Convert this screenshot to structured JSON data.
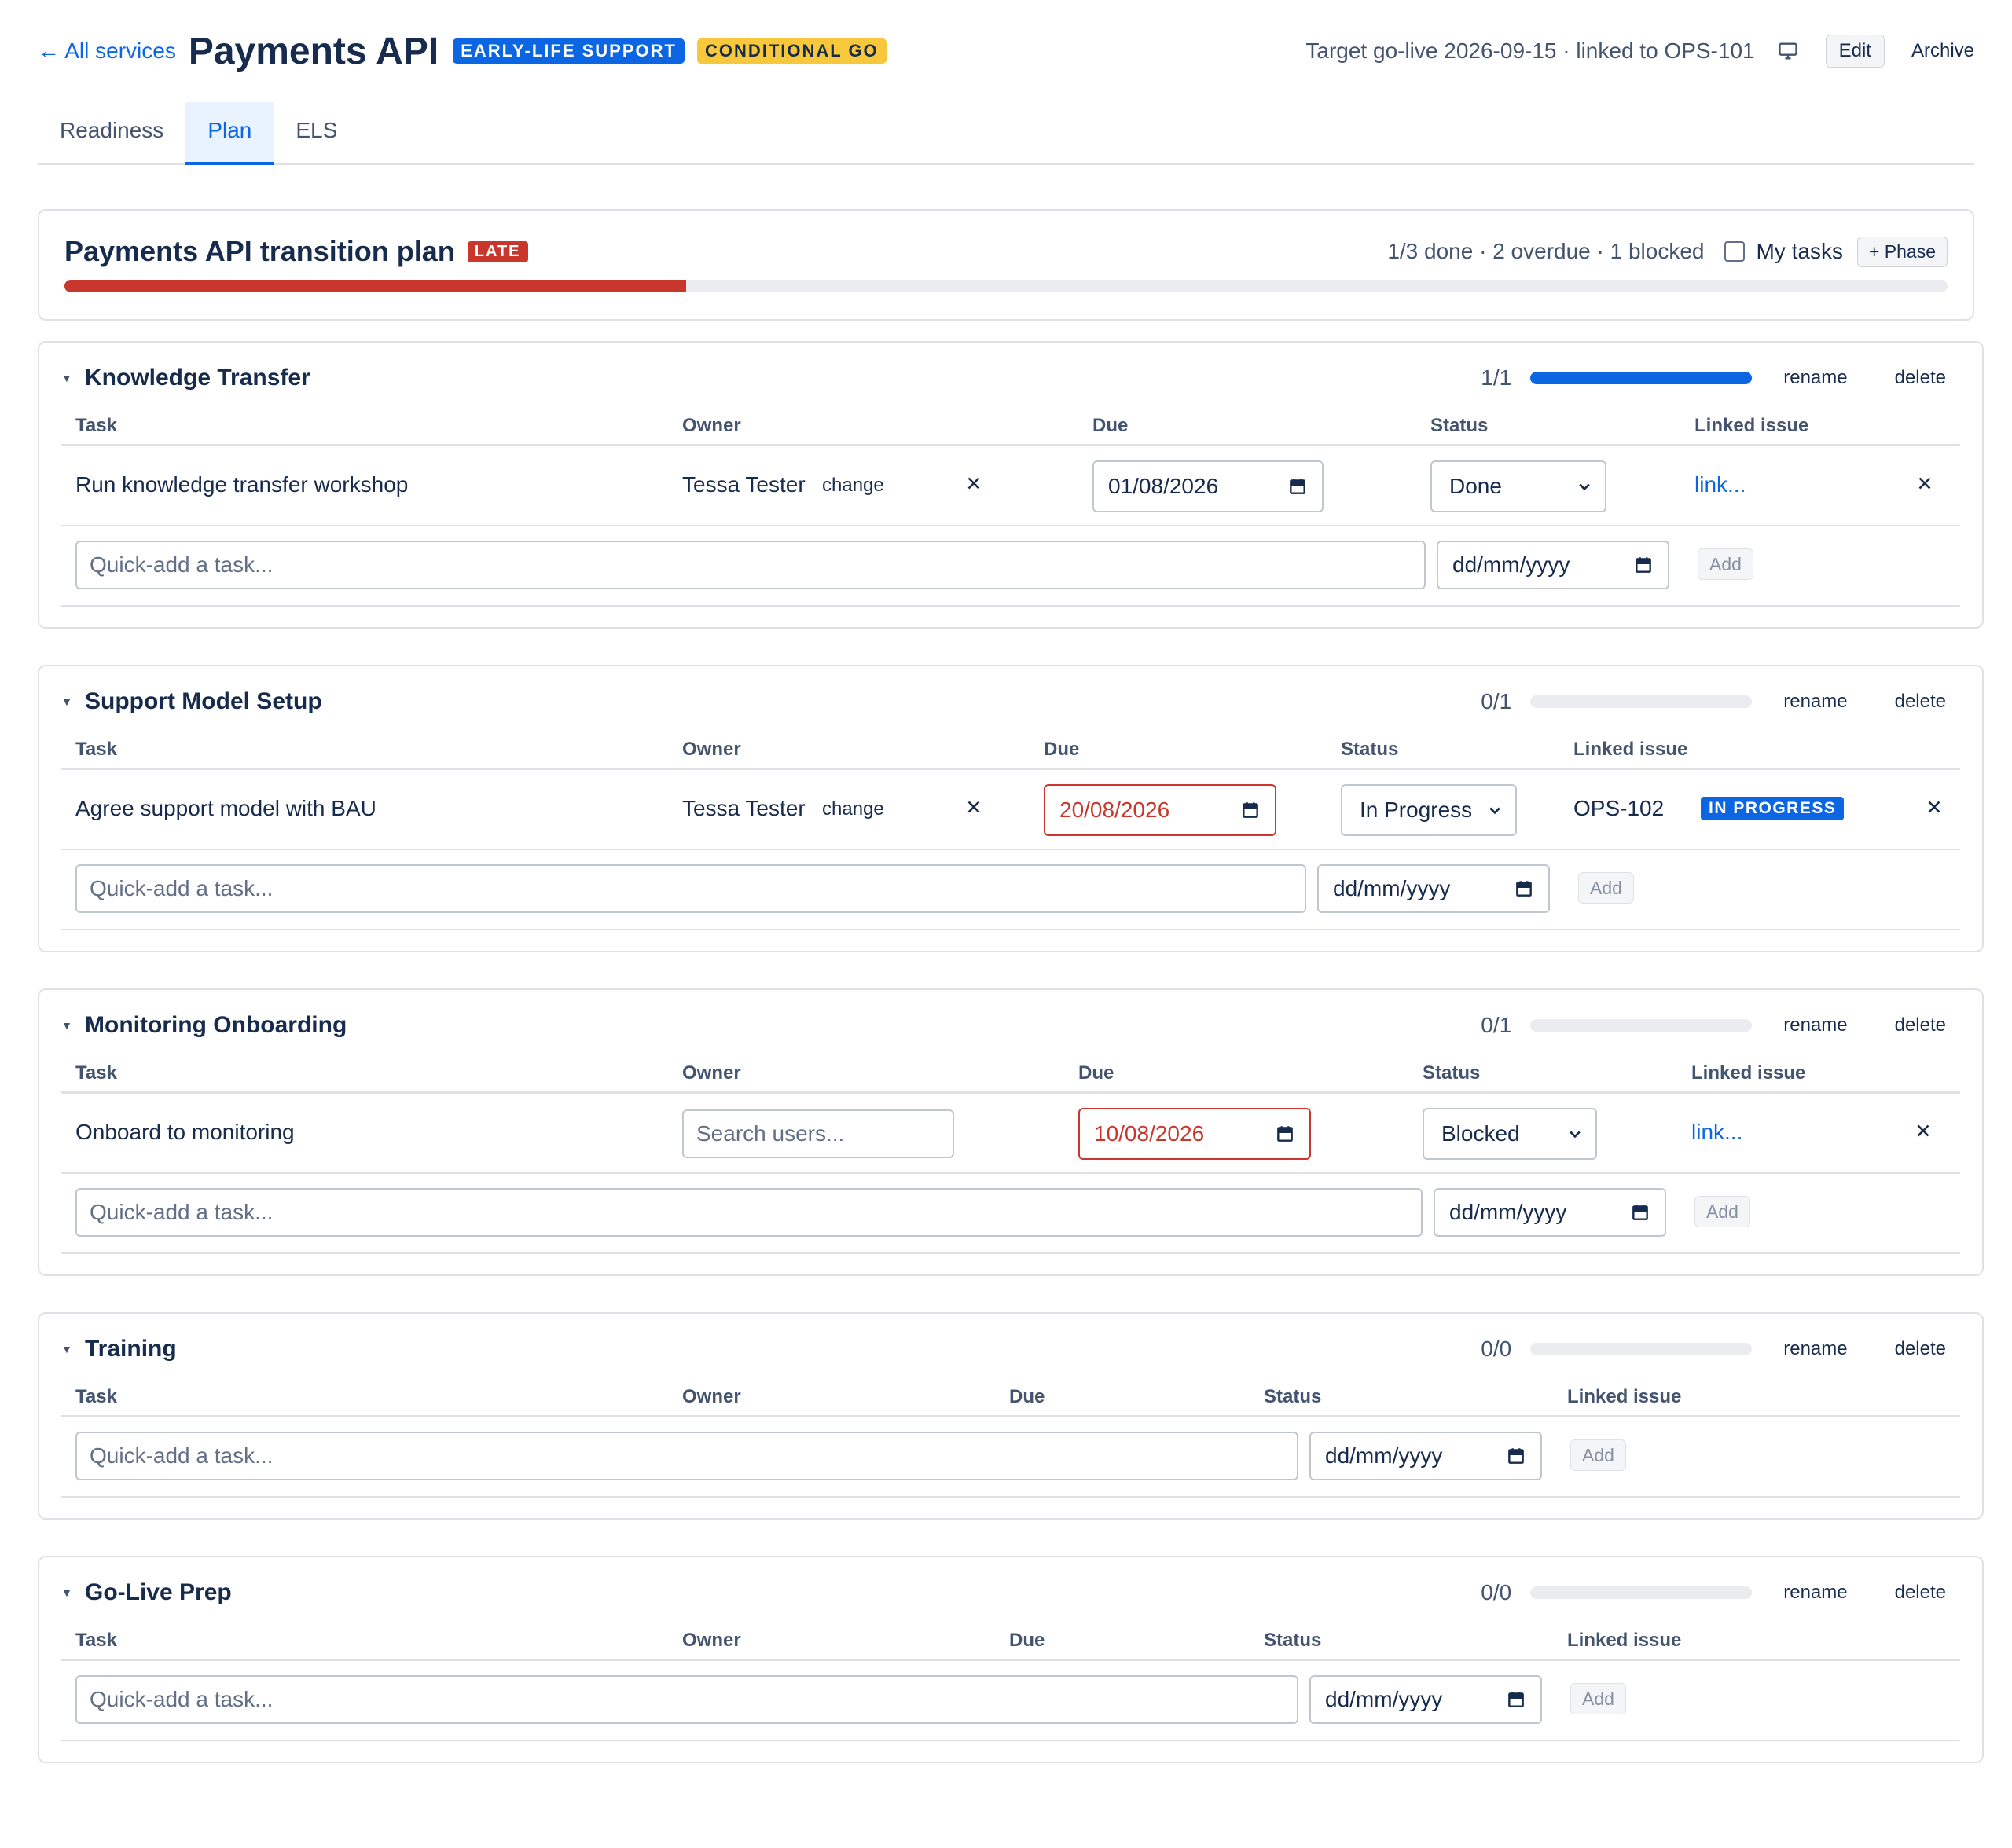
{
  "header": {
    "back_label": "← All services",
    "title": "Payments API",
    "badge_els": "EARLY-LIFE SUPPORT",
    "badge_go": "CONDITIONAL GO",
    "target": "Target go-live 2026-09-15 · linked to OPS-101",
    "edit_label": "Edit",
    "archive_label": "Archive"
  },
  "tabs": [
    {
      "label": "Readiness",
      "active": false
    },
    {
      "label": "Plan",
      "active": true
    },
    {
      "label": "ELS",
      "active": false
    }
  ],
  "plan": {
    "title": "Payments API transition plan",
    "late_badge": "LATE",
    "stats": "1/3 done · 2 overdue · 1 blocked",
    "my_tasks_label": "My tasks",
    "my_tasks_checked": false,
    "add_phase_label": "+ Phase",
    "progress": 0.33,
    "progress_color": "#c9372c"
  },
  "columns": {
    "task": "Task",
    "owner": "Owner",
    "due": "Due",
    "status": "Status",
    "linked": "Linked issue"
  },
  "actions": {
    "rename": "rename",
    "delete": "delete",
    "change": "change",
    "quick_add_placeholder": "Quick-add a task...",
    "date_placeholder": "dd/mm/yyyy",
    "add": "Add",
    "link": "link...",
    "search_users_placeholder": "Search users..."
  },
  "phases": [
    {
      "name": "Knowledge Transfer",
      "count": "1/1",
      "progress": 1.0,
      "tasks": [
        {
          "task": "Run knowledge transfer workshop",
          "owner": "Tessa Tester",
          "due": "01/08/2026",
          "overdue": false,
          "status": "Done",
          "linked_issue": "",
          "issue_status": ""
        }
      ]
    },
    {
      "name": "Support Model Setup",
      "count": "0/1",
      "progress": 0.0,
      "tasks": [
        {
          "task": "Agree support model with BAU",
          "owner": "Tessa Tester",
          "due": "20/08/2026",
          "overdue": true,
          "status": "In Progress",
          "linked_issue": "OPS-102",
          "issue_status": "IN PROGRESS"
        }
      ]
    },
    {
      "name": "Monitoring Onboarding",
      "count": "0/1",
      "progress": 0.0,
      "tasks": [
        {
          "task": "Onboard to monitoring",
          "owner": "",
          "due": "10/08/2026",
          "overdue": true,
          "status": "Blocked",
          "linked_issue": "",
          "issue_status": ""
        }
      ]
    },
    {
      "name": "Training",
      "count": "0/0",
      "progress": 0.0,
      "tasks": []
    },
    {
      "name": "Go-Live Prep",
      "count": "0/0",
      "progress": 0.0,
      "tasks": []
    }
  ],
  "colors": {
    "accent": "#0c66e4",
    "danger": "#c9372c",
    "warning": "#f8c83c"
  }
}
